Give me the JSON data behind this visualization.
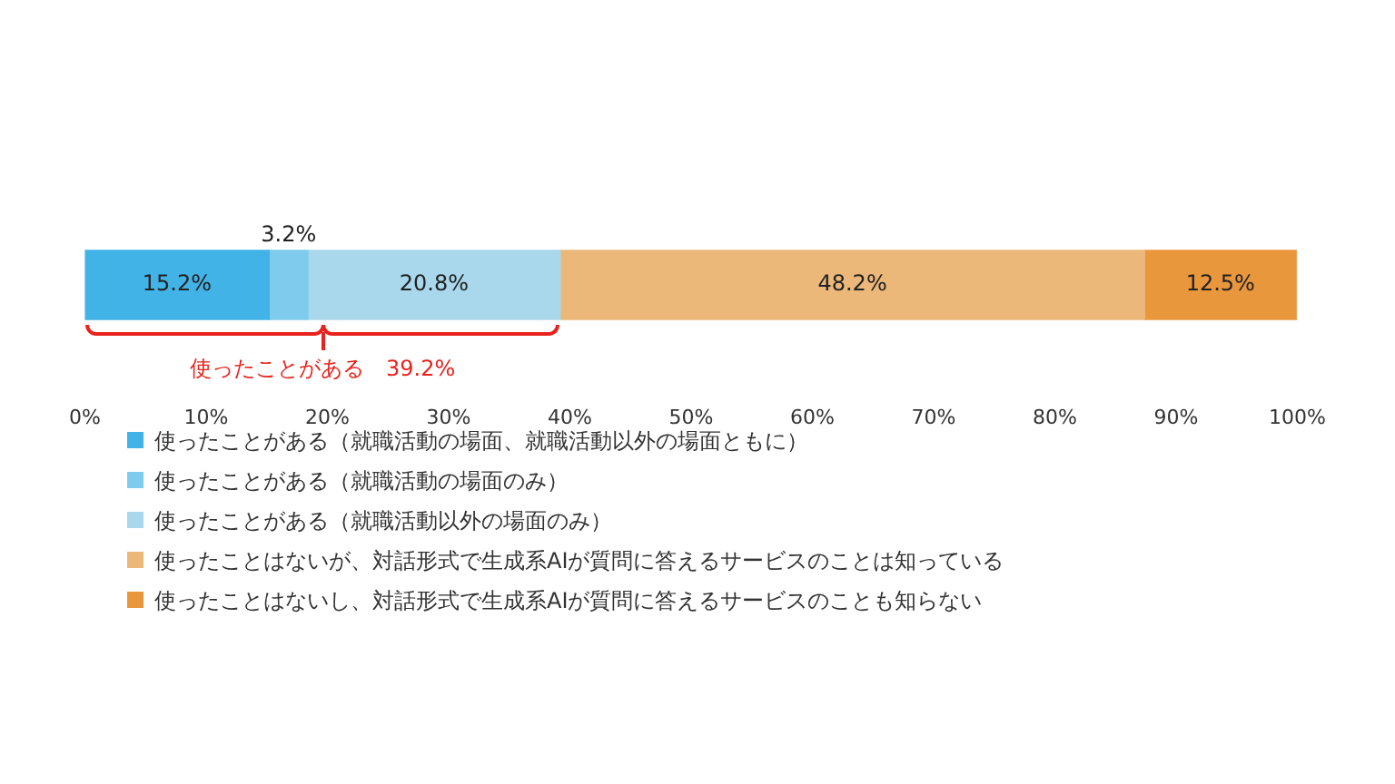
{
  "chart_data": {
    "type": "bar",
    "stacked": true,
    "orientation": "horizontal",
    "categories": [
      null
    ],
    "series": [
      {
        "name": "使ったことがある（就職活動の場面、就職活動以外の場面ともに）",
        "color": "#41b3e6",
        "values": [
          15.2
        ],
        "value_labels": [
          "15.2%"
        ]
      },
      {
        "name": "使ったことがある（就職活動の場面のみ）",
        "color": "#7fcbee",
        "values": [
          3.2
        ],
        "value_labels": [
          "3.2%"
        ]
      },
      {
        "name": "使ったことがある（就職活動以外の場面のみ）",
        "color": "#a9d8ec",
        "values": [
          20.8
        ],
        "value_labels": [
          "20.8%"
        ]
      },
      {
        "name": "使ったことはないが、対話形式で生成系AIが質問に答えるサービスのことは知っている",
        "color": "#ebb87a",
        "values": [
          48.2
        ],
        "value_labels": [
          "48.2%"
        ]
      },
      {
        "name": "使ったことはないし、対話形式で生成系AIが質問に答えるサービスのことも知らない",
        "color": "#e9973d",
        "values": [
          12.5
        ],
        "value_labels": [
          "12.5%"
        ]
      }
    ],
    "xlim": [
      0,
      100
    ],
    "xticks": [
      {
        "value": 0,
        "label": "0%"
      },
      {
        "value": 10,
        "label": "10%"
      },
      {
        "value": 20,
        "label": "20%"
      },
      {
        "value": 30,
        "label": "30%"
      },
      {
        "value": 40,
        "label": "40%"
      },
      {
        "value": 50,
        "label": "50%"
      },
      {
        "value": 60,
        "label": "60%"
      },
      {
        "value": 70,
        "label": "70%"
      },
      {
        "value": 80,
        "label": "80%"
      },
      {
        "value": 90,
        "label": "90%"
      },
      {
        "value": 100,
        "label": "100%"
      }
    ],
    "grid": false,
    "legend": "bottom left",
    "tick_labels": "x",
    "annotations": [
      "使ったことがある　39.2%"
    ]
  }
}
